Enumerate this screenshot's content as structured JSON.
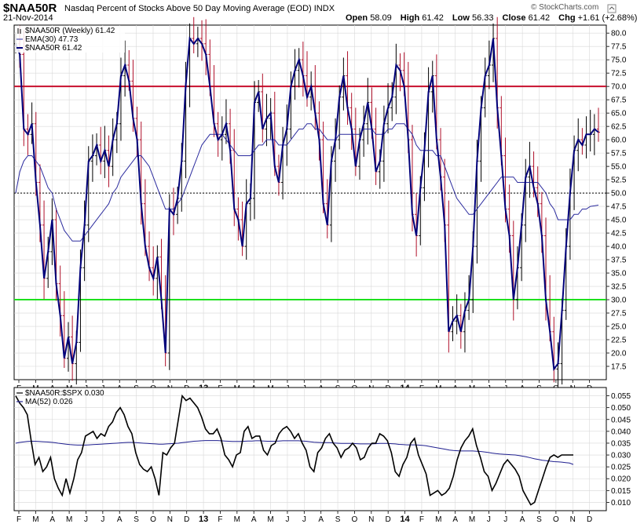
{
  "header": {
    "symbol": "$NAA50R",
    "description": "Nasdaq Percent of Stocks Above 50 Day Moving Average (EOD)",
    "exchange": "INDX",
    "date": "21-Nov-2014",
    "open_label": "Open",
    "open": "58.09",
    "high_label": "High",
    "high": "61.42",
    "low_label": "Low",
    "low": "56.33",
    "close_label": "Close",
    "close": "61.42",
    "chg_label": "Chg",
    "chg": "+1.61 (+2.68%)",
    "copyright": "© StockCharts.com"
  },
  "colors": {
    "price": "#00007a",
    "ema": "#2b2b9e",
    "bar_up": "#000000",
    "bar_down": "#b0102a",
    "upper_line": "#c8102e",
    "lower_line": "#1ee01e",
    "ratio": "#000000",
    "ratio_ma": "#1f1f8f",
    "grid": "#d8d8d8"
  },
  "chart_data": [
    {
      "type": "line",
      "legend": [
        {
          "text": "$NAA50R (Weekly) 61.42",
          "icon": "ohlc-bar-icon"
        },
        {
          "text": "EMA(30) 47.73",
          "icon": "line-icon"
        },
        {
          "text": "$NAA50R 61.42",
          "icon": "line-icon"
        }
      ],
      "x_labels": [
        "F",
        "M",
        "A",
        "M",
        "J",
        "J",
        "A",
        "S",
        "O",
        "N",
        "D",
        "13",
        "F",
        "M",
        "A",
        "M",
        "J",
        "J",
        "A",
        "S",
        "O",
        "N",
        "D",
        "14",
        "F",
        "M",
        "A",
        "M",
        "J",
        "J",
        "A",
        "S",
        "O",
        "N",
        "D"
      ],
      "x_start": 0.0,
      "x_label_week_step": 4.35,
      "weeks_total": 145,
      "ylim": [
        15,
        81.5
      ],
      "y_ticks": [
        17.5,
        20,
        22.5,
        25,
        27.5,
        30,
        32.5,
        35,
        37.5,
        40,
        42.5,
        45,
        47.5,
        50,
        52.5,
        55,
        57.5,
        60,
        62.5,
        65,
        67.5,
        70,
        72.5,
        75,
        77.5,
        80
      ],
      "reference_lines": [
        {
          "value": 70,
          "style": "upper"
        },
        {
          "value": 50,
          "style": "dotted"
        },
        {
          "value": 30,
          "style": "lower"
        }
      ],
      "series": [
        {
          "name": "$NAA50R",
          "values": [
            78,
            76,
            62,
            61,
            63,
            52,
            44,
            34,
            39,
            45,
            33,
            27,
            19,
            23,
            18,
            22,
            36,
            44,
            56,
            57,
            59,
            56,
            58,
            55,
            60,
            63,
            72,
            74,
            71,
            64,
            60,
            48,
            40,
            36,
            34,
            38,
            30,
            20,
            47,
            46,
            49,
            56,
            70,
            79,
            78,
            79,
            78,
            76,
            70,
            63,
            60,
            61,
            63,
            58,
            47,
            45,
            40,
            48,
            49,
            67,
            69,
            62,
            64,
            65,
            55,
            52,
            59,
            62,
            70,
            73,
            75,
            72,
            68,
            70,
            65,
            60,
            48,
            44,
            56,
            60,
            68,
            72,
            66,
            62,
            55,
            60,
            63,
            67,
            62,
            54,
            56,
            63,
            66,
            68,
            74,
            73,
            70,
            60,
            46,
            42,
            51,
            58,
            69,
            72,
            60,
            53,
            44,
            24,
            26,
            27,
            24,
            28,
            30,
            40,
            56,
            66,
            72,
            74,
            79,
            66,
            57,
            47,
            42,
            30,
            36,
            44,
            53,
            55,
            51,
            48,
            42,
            30,
            24,
            17,
            18,
            28,
            40,
            50,
            58,
            60,
            59,
            61,
            61,
            62,
            61.42
          ],
          "ema_values": [
            50,
            54,
            56,
            57,
            57,
            56,
            55,
            53,
            51,
            50,
            47,
            45,
            43,
            42,
            41,
            41,
            41,
            42,
            43,
            44,
            45,
            46,
            47,
            48,
            50,
            51,
            53,
            54,
            55,
            56,
            57,
            57,
            56,
            55,
            53,
            51,
            49,
            47,
            47,
            47,
            48,
            49,
            51,
            53,
            55,
            57,
            59,
            60,
            61,
            61,
            61,
            61,
            60,
            59,
            58,
            57,
            57,
            57,
            57,
            58,
            59,
            59,
            60,
            60,
            60,
            59,
            59,
            59,
            60,
            61,
            62,
            62,
            63,
            63,
            62,
            62,
            61,
            60,
            60,
            60,
            61,
            61,
            61,
            61,
            61,
            61,
            62,
            62,
            62,
            61,
            61,
            61,
            62,
            62,
            63,
            63,
            63,
            62,
            61,
            59,
            58,
            58,
            58,
            58,
            57,
            57,
            55,
            53,
            51,
            49,
            48,
            47,
            46,
            46,
            47,
            48,
            49,
            50,
            51,
            52,
            53,
            53,
            53,
            53,
            52,
            52,
            52,
            52,
            52,
            52,
            51,
            50,
            48,
            47,
            45,
            45,
            45,
            45,
            46,
            46,
            47,
            47,
            47.5,
            47.6,
            47.73
          ]
        }
      ]
    },
    {
      "type": "line",
      "legend": [
        {
          "text": "$NAA50R:$SPX 0.030",
          "icon": "line-icon"
        },
        {
          "text": "MA(52) 0.026",
          "icon": "line-icon"
        }
      ],
      "x_labels": [
        "F",
        "M",
        "A",
        "M",
        "J",
        "J",
        "A",
        "S",
        "O",
        "N",
        "D",
        "13",
        "F",
        "M",
        "A",
        "M",
        "J",
        "J",
        "A",
        "S",
        "O",
        "N",
        "D",
        "14",
        "F",
        "M",
        "A",
        "M",
        "J",
        "J",
        "A",
        "S",
        "O",
        "N",
        "D"
      ],
      "ylim": [
        0.0065,
        0.0585
      ],
      "y_ticks": [
        0.01,
        0.015,
        0.02,
        0.025,
        0.03,
        0.035,
        0.04,
        0.045,
        0.05,
        0.055
      ],
      "series": [
        {
          "name": "$NAA50R:$SPX",
          "values": [
            0.055,
            0.052,
            0.05,
            0.047,
            0.036,
            0.026,
            0.029,
            0.023,
            0.025,
            0.029,
            0.02,
            0.016,
            0.013,
            0.02,
            0.014,
            0.02,
            0.028,
            0.031,
            0.038,
            0.039,
            0.04,
            0.037,
            0.039,
            0.038,
            0.042,
            0.044,
            0.048,
            0.05,
            0.047,
            0.042,
            0.039,
            0.031,
            0.026,
            0.024,
            0.023,
            0.025,
            0.02,
            0.013,
            0.031,
            0.03,
            0.033,
            0.035,
            0.045,
            0.055,
            0.053,
            0.054,
            0.052,
            0.05,
            0.046,
            0.041,
            0.039,
            0.039,
            0.041,
            0.037,
            0.03,
            0.028,
            0.025,
            0.03,
            0.031,
            0.04,
            0.042,
            0.037,
            0.038,
            0.038,
            0.032,
            0.03,
            0.034,
            0.035,
            0.039,
            0.041,
            0.042,
            0.04,
            0.037,
            0.039,
            0.035,
            0.032,
            0.025,
            0.023,
            0.031,
            0.033,
            0.037,
            0.039,
            0.035,
            0.033,
            0.029,
            0.032,
            0.033,
            0.035,
            0.033,
            0.028,
            0.029,
            0.033,
            0.035,
            0.035,
            0.039,
            0.038,
            0.036,
            0.031,
            0.023,
            0.021,
            0.026,
            0.029,
            0.035,
            0.037,
            0.03,
            0.026,
            0.022,
            0.013,
            0.014,
            0.015,
            0.013,
            0.014,
            0.016,
            0.021,
            0.028,
            0.033,
            0.036,
            0.038,
            0.041,
            0.034,
            0.029,
            0.023,
            0.021,
            0.015,
            0.018,
            0.022,
            0.026,
            0.028,
            0.026,
            0.024,
            0.021,
            0.015,
            0.012,
            0.009,
            0.01,
            0.015,
            0.02,
            0.025,
            0.029,
            0.03,
            0.029,
            0.03,
            0.03,
            0.03,
            0.03
          ]
        },
        {
          "name": "MA(52)",
          "values": [
            0.035,
            0.0353,
            0.0355,
            0.0357,
            0.0358,
            0.0358,
            0.0357,
            0.0356,
            0.0355,
            0.0354,
            0.0352,
            0.035,
            0.0348,
            0.0346,
            0.0344,
            0.0343,
            0.0342,
            0.0342,
            0.0342,
            0.0343,
            0.0344,
            0.0345,
            0.0346,
            0.0347,
            0.0348,
            0.0349,
            0.035,
            0.0351,
            0.0352,
            0.0353,
            0.0353,
            0.0352,
            0.0351,
            0.035,
            0.0349,
            0.0348,
            0.0347,
            0.0346,
            0.0346,
            0.0347,
            0.0348,
            0.0349,
            0.035,
            0.0352,
            0.0354,
            0.0356,
            0.0358,
            0.0359,
            0.036,
            0.0361,
            0.0361,
            0.0361,
            0.0361,
            0.036,
            0.0359,
            0.0358,
            0.0357,
            0.0357,
            0.0357,
            0.0358,
            0.0359,
            0.0359,
            0.036,
            0.036,
            0.0359,
            0.0358,
            0.0358,
            0.0358,
            0.0359,
            0.036,
            0.036,
            0.036,
            0.036,
            0.036,
            0.0359,
            0.0358,
            0.0356,
            0.0354,
            0.0353,
            0.0352,
            0.0352,
            0.0352,
            0.0351,
            0.035,
            0.0349,
            0.0349,
            0.0349,
            0.0349,
            0.0348,
            0.0347,
            0.0347,
            0.0347,
            0.0347,
            0.0348,
            0.0349,
            0.0349,
            0.0349,
            0.0348,
            0.0347,
            0.0345,
            0.0344,
            0.0343,
            0.0343,
            0.0343,
            0.0342,
            0.0341,
            0.0339,
            0.0336,
            0.0333,
            0.033,
            0.0327,
            0.0324,
            0.0321,
            0.0319,
            0.0318,
            0.0317,
            0.0317,
            0.0317,
            0.0317,
            0.0316,
            0.0315,
            0.0313,
            0.0311,
            0.0308,
            0.0306,
            0.0304,
            0.0303,
            0.0302,
            0.0301,
            0.03,
            0.0298,
            0.0295,
            0.0292,
            0.0288,
            0.0284,
            0.0281,
            0.0278,
            0.0276,
            0.0274,
            0.0272,
            0.0271,
            0.027,
            0.0268,
            0.0266,
            0.026
          ]
        }
      ]
    }
  ]
}
